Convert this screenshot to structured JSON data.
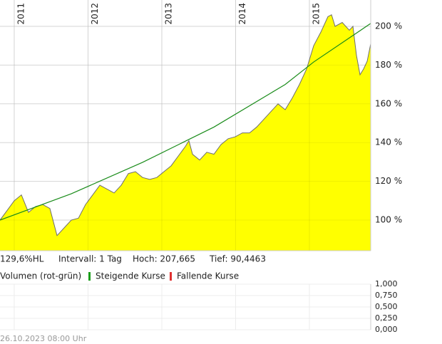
{
  "chart_data": {
    "type": "area",
    "xlim": [
      2010.807,
      2015.831
    ],
    "xticks": [
      2011,
      2012,
      2013,
      2014,
      2015
    ],
    "ylim": [
      84.2,
      213.6
    ],
    "yticks": [
      {
        "value": 100,
        "label": "100 %"
      },
      {
        "value": 120,
        "label": "120 %"
      },
      {
        "value": 140,
        "label": "140 %"
      },
      {
        "value": 160,
        "label": "160 %"
      },
      {
        "value": 180,
        "label": "180 %"
      },
      {
        "value": 200,
        "label": "200 %"
      }
    ],
    "grid": true,
    "series": [
      {
        "color": "#6e6e6e",
        "fill": "#ffff00",
        "x": [
          2010.807,
          2010.904,
          2011.0,
          2011.097,
          2011.193,
          2011.29,
          2011.387,
          2011.483,
          2011.58,
          2011.677,
          2011.773,
          2011.87,
          2011.966,
          2012.063,
          2012.16,
          2012.256,
          2012.353,
          2012.45,
          2012.546,
          2012.643,
          2012.739,
          2012.836,
          2012.933,
          2013.029,
          2013.126,
          2013.222,
          2013.319,
          2013.367,
          2013.416,
          2013.512,
          2013.609,
          2013.706,
          2013.802,
          2013.899,
          2013.995,
          2014.092,
          2014.189,
          2014.285,
          2014.382,
          2014.478,
          2014.575,
          2014.672,
          2014.768,
          2014.865,
          2014.962,
          2015.058,
          2015.155,
          2015.251,
          2015.3,
          2015.348,
          2015.445,
          2015.541,
          2015.59,
          2015.638,
          2015.686,
          2015.734,
          2015.783,
          2015.831
        ],
        "values": [
          100,
          105,
          110,
          113,
          104,
          107,
          108,
          106,
          92,
          96,
          100,
          101,
          108,
          113,
          118,
          116,
          114,
          118,
          124,
          125,
          122,
          121,
          122,
          125,
          128,
          133,
          138,
          141,
          134,
          131,
          135,
          134,
          139,
          142,
          143,
          145,
          145,
          148,
          152,
          156,
          160,
          157,
          163,
          170,
          178,
          190,
          197,
          205,
          206,
          200,
          202,
          198,
          200,
          185,
          175,
          178,
          182,
          191
        ]
      },
      {
        "color": "#1a8c1a",
        "x": [
          2010.807,
          2011.773,
          2012.739,
          2013.706,
          2014.672,
          2015.058,
          2015.831
        ],
        "values": [
          100,
          113.6,
          129.8,
          148,
          170,
          181.6,
          201.5
        ]
      }
    ],
    "info": [
      "129,6%HL",
      "Intervall: 1 Tag",
      "Hoch:  207,665",
      "Tief: 90,4463"
    ],
    "legend": [
      {
        "label": "Volumen (rot-grün)"
      },
      {
        "label": "Steigende Kurse",
        "color": "#1a9e1a"
      },
      {
        "label": "Fallende Kurse",
        "color": "#e03030"
      }
    ],
    "volume_ylim": [
      0,
      1
    ],
    "volume_yticks": [
      {
        "value": 0,
        "label": "0,000"
      },
      {
        "value": 0.25,
        "label": "0,250"
      },
      {
        "value": 0.5,
        "label": "0,500"
      },
      {
        "value": 0.75,
        "label": "0,750"
      },
      {
        "value": 1,
        "label": "1,000"
      }
    ],
    "timestamp": "26.10.2023 08:00 Uhr"
  }
}
